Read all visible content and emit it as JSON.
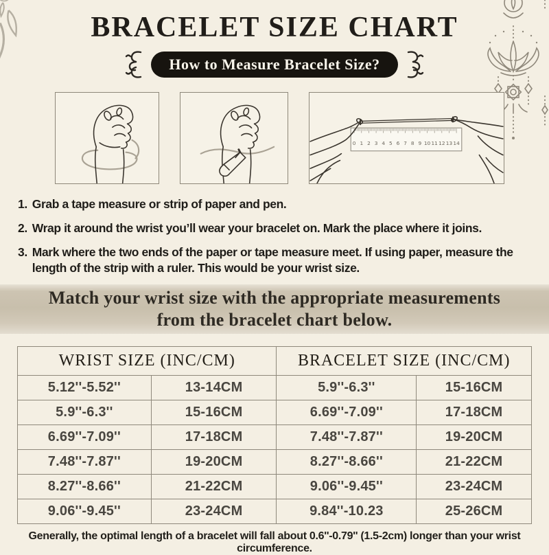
{
  "title": "BRACELET SIZE CHART",
  "pill": {
    "label": "How to Measure Bracelet Size?"
  },
  "figures": [
    {
      "name": "wrap-tape-around-wrist"
    },
    {
      "name": "mark-wrist-with-pen"
    },
    {
      "name": "measure-strip-with-ruler"
    }
  ],
  "illustrations": {
    "ruler_numbers": [
      "0",
      "1",
      "2",
      "3",
      "4",
      "5",
      "6",
      "7",
      "8",
      "9",
      "10",
      "11",
      "12",
      "13",
      "14"
    ]
  },
  "instructions": [
    {
      "num": "1.",
      "text": "Grab a tape measure or strip of paper and pen."
    },
    {
      "num": "2.",
      "text": "Wrap it around the wrist you’ll wear your bracelet on. Mark the place where it joins."
    },
    {
      "num": "3.",
      "text": "Mark where the two ends of the paper or tape measure meet. If using paper, measure the length of the strip with a ruler. This would be your wrist size."
    }
  ],
  "banner": {
    "line1": "Match your wrist size with the appropriate measurements",
    "line2": "from the bracelet chart below."
  },
  "table": {
    "headers": [
      "WRIST SIZE (INC/CM)",
      "BRACELET SIZE  (INC/CM)"
    ],
    "rows": [
      {
        "wrist_in": "5.12''-5.52''",
        "wrist_cm": "13-14CM",
        "bracelet_in": "5.9''-6.3''",
        "bracelet_cm": "15-16CM"
      },
      {
        "wrist_in": "5.9''-6.3''",
        "wrist_cm": "15-16CM",
        "bracelet_in": "6.69''-7.09''",
        "bracelet_cm": "17-18CM"
      },
      {
        "wrist_in": "6.69''-7.09''",
        "wrist_cm": "17-18CM",
        "bracelet_in": "7.48''-7.87''",
        "bracelet_cm": "19-20CM"
      },
      {
        "wrist_in": "7.48''-7.87''",
        "wrist_cm": "19-20CM",
        "bracelet_in": "8.27''-8.66''",
        "bracelet_cm": "21-22CM"
      },
      {
        "wrist_in": "8.27''-8.66''",
        "wrist_cm": "21-22CM",
        "bracelet_in": "9.06''-9.45''",
        "bracelet_cm": "23-24CM"
      },
      {
        "wrist_in": "9.06''-9.45''",
        "wrist_cm": "23-24CM",
        "bracelet_in": "9.84''-10.23",
        "bracelet_cm": "25-26CM"
      }
    ]
  },
  "footnote": "Generally, the optimal length of a bracelet will fall about 0.6''-0.79'' (1.5-2cm) longer than your wrist circumference.",
  "colors": {
    "background": "#f4efe3",
    "pill_black": "#17140f",
    "banner_tan": "#c8bfac",
    "table_border": "#8e887b",
    "ornament_gray": "#b5afa2",
    "lotus_gray": "#8f887b"
  },
  "decor": {
    "top_left": "mandala-flower-line-art",
    "top_right": "hanging-lotus-line-art",
    "pill_sides": "curly-flourish-brackets"
  }
}
